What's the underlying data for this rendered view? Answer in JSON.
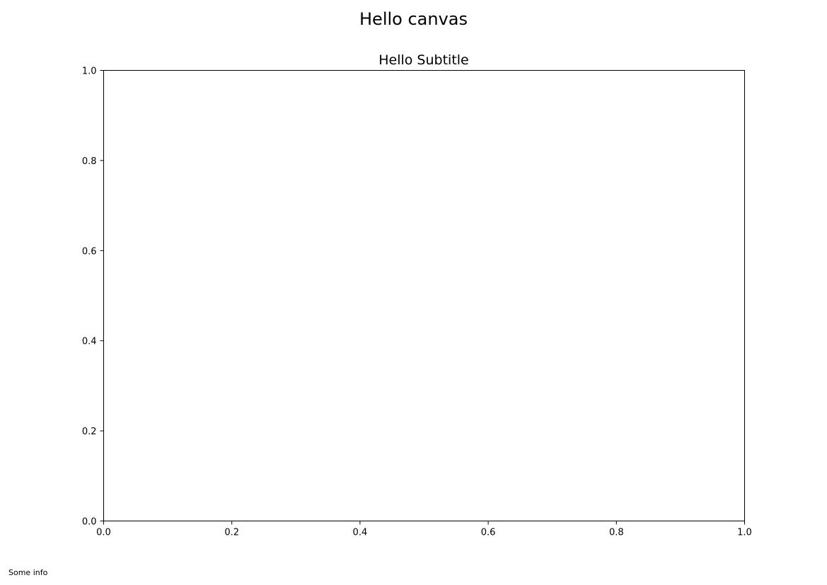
{
  "figure": {
    "suptitle": "Hello canvas",
    "footer_text": "Some info"
  },
  "chart_data": {
    "type": "line",
    "title": "Hello Subtitle",
    "xlabel": "",
    "ylabel": "",
    "xlim": [
      0.0,
      1.0
    ],
    "ylim": [
      0.0,
      1.0
    ],
    "xticks": [
      0.0,
      0.2,
      0.4,
      0.6,
      0.8,
      1.0
    ],
    "yticks": [
      0.0,
      0.2,
      0.4,
      0.6,
      0.8,
      1.0
    ],
    "xtick_labels": [
      "0.0",
      "0.2",
      "0.4",
      "0.6",
      "0.8",
      "1.0"
    ],
    "ytick_labels": [
      "0.0",
      "0.2",
      "0.4",
      "0.6",
      "0.8",
      "1.0"
    ],
    "grid": false,
    "series": []
  }
}
